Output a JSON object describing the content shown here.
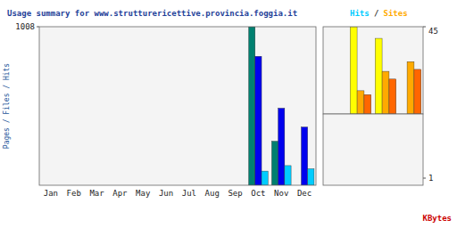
{
  "chart_data": [
    {
      "type": "bar",
      "title": "Usage summary for www.strutturericettive.provincia.foggia.it",
      "y_label": "Pages / Files / Hits",
      "categories": [
        "Jan",
        "Feb",
        "Mar",
        "Apr",
        "May",
        "Jun",
        "Jul",
        "Aug",
        "Sep",
        "Oct",
        "Nov",
        "Dec"
      ],
      "series": [
        {
          "color": "#008070",
          "values": [
            0,
            0,
            0,
            0,
            0,
            0,
            0,
            0,
            0,
            1008,
            280,
            0
          ]
        },
        {
          "color": "#0000ee",
          "values": [
            0,
            0,
            0,
            0,
            0,
            0,
            0,
            0,
            0,
            820,
            490,
            370
          ]
        },
        {
          "color": "#00ccff",
          "values": [
            0,
            0,
            0,
            0,
            0,
            0,
            0,
            0,
            0,
            90,
            125,
            105
          ]
        }
      ],
      "ylim": [
        0,
        1008
      ],
      "yticks": [
        1008
      ]
    },
    {
      "type": "bar",
      "categories": [
        null,
        null,
        null,
        null
      ],
      "series": [
        {
          "color": "#ffff00",
          "values": [
            0,
            45,
            39,
            0
          ]
        },
        {
          "color": "#ffaa00",
          "values": [
            0,
            12,
            22,
            27
          ]
        },
        {
          "color": "#ff6600",
          "values": [
            0,
            10,
            18,
            23
          ]
        }
      ],
      "ylim": [
        0,
        45
      ],
      "yticks": [
        45
      ],
      "tick_labels": "y",
      "annotations": [
        {
          "text": "Hits",
          "color": "#00ccff"
        },
        {
          "text": "/",
          "color": "#333333"
        },
        {
          "text": "Sites",
          "color": "#ffaa00"
        },
        {
          "text": "KBytes",
          "color": "#cc0000"
        }
      ]
    },
    {
      "type": "bar",
      "series": [],
      "ylim": [
        0,
        10
      ],
      "yticks": [
        1
      ],
      "tick_labels": "y"
    }
  ]
}
